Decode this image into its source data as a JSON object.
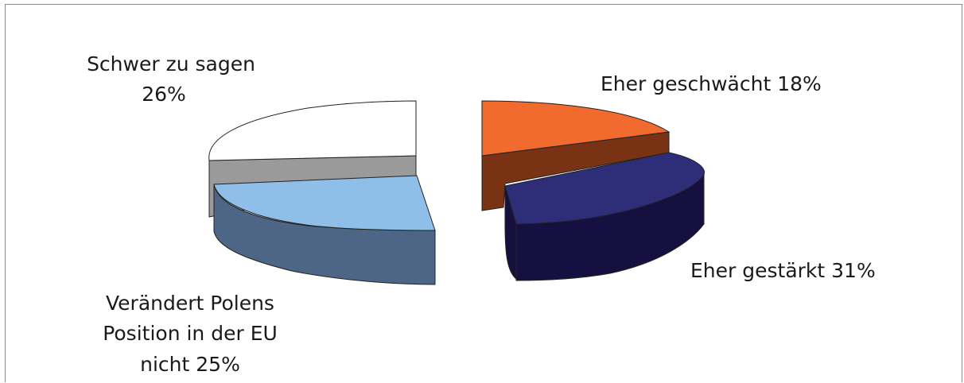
{
  "chart_data": {
    "type": "pie",
    "style": "exploded 3D pie",
    "slices": [
      {
        "label": "Eher geschwächt 18%",
        "category": "Eher geschwächt",
        "value": 18,
        "color": "#f26b2e",
        "side_color": "#7a3214"
      },
      {
        "label": "Eher gestärkt 31%",
        "category": "Eher gestärkt",
        "value": 31,
        "color": "#2e2e78",
        "side_color": "#15103f"
      },
      {
        "label_lines": [
          "Verändert Polens",
          "Position in der EU",
          "nicht 25%"
        ],
        "category": "Verändert Polens Position in der EU nicht",
        "value": 25,
        "color": "#8fbfe8",
        "side_color": "#4d6686"
      },
      {
        "label_lines": [
          "Schwer zu sagen",
          "26%"
        ],
        "category": "Schwer zu sagen",
        "value": 26,
        "color": "#ffffff",
        "side_color": "#9a9a9a"
      }
    ],
    "title": "",
    "legend": "none"
  }
}
